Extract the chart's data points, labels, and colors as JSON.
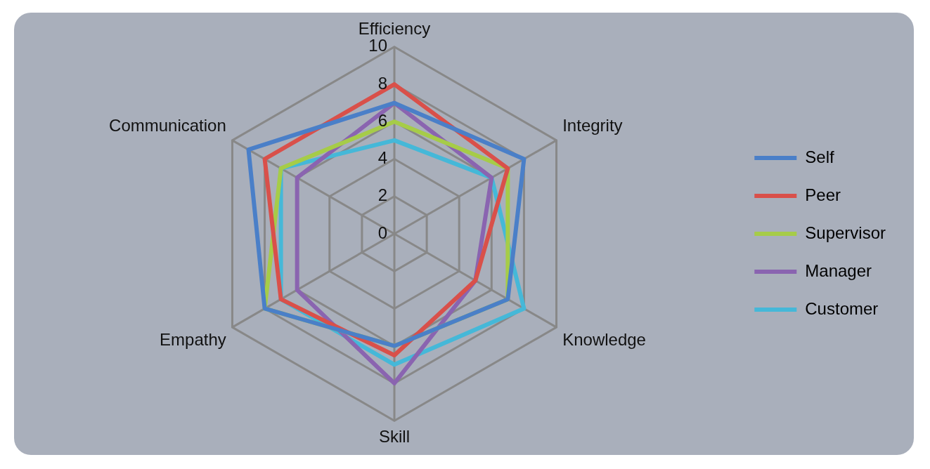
{
  "chart_data": {
    "type": "radar",
    "categories": [
      "Efficiency",
      "Integrity",
      "Knowledge",
      "Skill",
      "Empathy",
      "Communication"
    ],
    "series": [
      {
        "name": "Self",
        "color": "#4a7fc8",
        "values": [
          7,
          8,
          7,
          6,
          8,
          9
        ]
      },
      {
        "name": "Peer",
        "color": "#d9504a",
        "values": [
          8,
          7,
          5,
          6.5,
          7,
          8
        ]
      },
      {
        "name": "Supervisor",
        "color": "#a6cc48",
        "values": [
          6,
          7,
          7,
          6,
          8,
          7
        ]
      },
      {
        "name": "Manager",
        "color": "#8a64b0",
        "values": [
          7,
          6,
          5,
          8,
          6,
          6
        ]
      },
      {
        "name": "Customer",
        "color": "#45b8d8",
        "values": [
          5,
          6,
          8,
          7,
          7,
          7
        ]
      }
    ],
    "ylim": [
      0,
      10
    ],
    "yticks": [
      0,
      2,
      4,
      6,
      8,
      10
    ],
    "grid": true,
    "legend": "right",
    "marker": "none"
  }
}
